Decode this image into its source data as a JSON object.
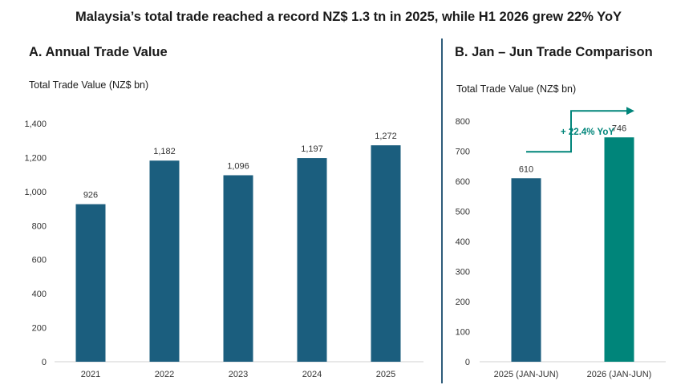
{
  "title": "Malaysia’s total trade reached a record NZ$ 1.3 tn in 2025, while H1 2026 grew 22% YoY",
  "chart_data": [
    {
      "type": "bar",
      "title": "A. Annual Trade Value",
      "ylabel": "Total Trade Value (NZ$ bn)",
      "xlabel": "",
      "categories": [
        "2021",
        "2022",
        "2023",
        "2024",
        "2025"
      ],
      "values": [
        926,
        1182,
        1096,
        1197,
        1272
      ],
      "value_labels": [
        "926",
        "1,182",
        "1,096",
        "1,197",
        "1,272"
      ],
      "ylim": [
        0,
        1400
      ],
      "yticks": [
        0,
        200,
        400,
        600,
        800,
        1000,
        1200,
        1400
      ],
      "ytick_labels": [
        "0",
        "200",
        "400",
        "600",
        "800",
        "1,000",
        "1,200",
        "1,400"
      ],
      "grid": false,
      "colors": [
        "#1b5e7e",
        "#1b5e7e",
        "#1b5e7e",
        "#1b5e7e",
        "#1b5e7e"
      ]
    },
    {
      "type": "bar",
      "title": "B. Jan – Jun Trade Comparison",
      "ylabel": "Total Trade Value (NZ$ bn)",
      "xlabel": "",
      "categories": [
        "2025 (JAN-JUN)",
        "2026 (JAN-JUN)"
      ],
      "values": [
        610,
        746
      ],
      "value_labels": [
        "610",
        "746"
      ],
      "ylim": [
        0,
        800
      ],
      "yticks": [
        0,
        100,
        200,
        300,
        400,
        500,
        600,
        700,
        800
      ],
      "ytick_labels": [
        "0",
        "100",
        "200",
        "300",
        "400",
        "500",
        "600",
        "700",
        "800"
      ],
      "grid": false,
      "colors": [
        "#1b5e7e",
        "#00857a"
      ],
      "annotation": "+ 22.4% YoY",
      "annotation_color": "#00857a"
    }
  ]
}
